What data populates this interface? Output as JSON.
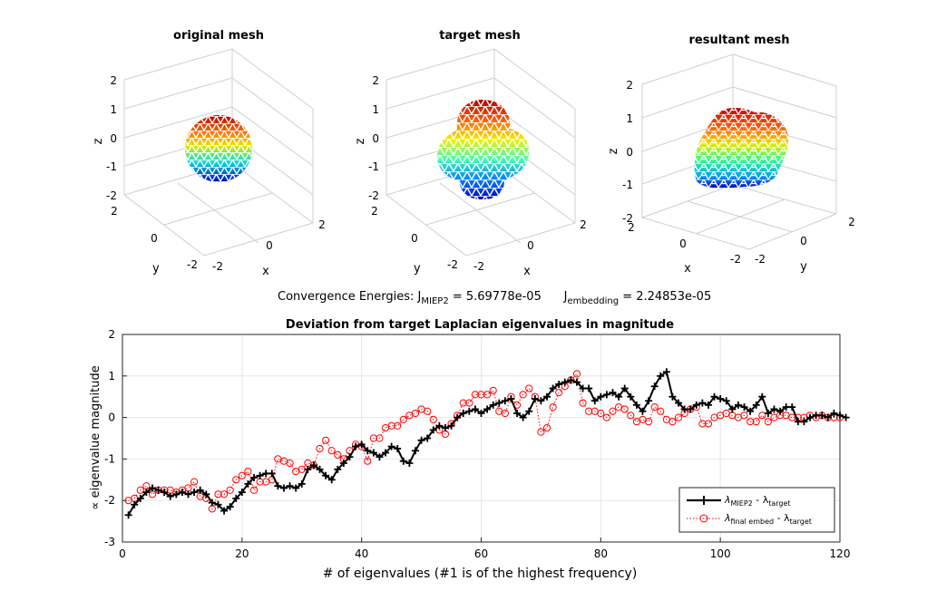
{
  "meshes": [
    {
      "title": "original mesh",
      "z_ticks": [
        "2",
        "1",
        "0",
        "-1",
        "-2"
      ],
      "y_ticks": [
        "2",
        "0",
        "-2"
      ],
      "x_ticks": [
        "-2",
        "0",
        "2"
      ],
      "xlabel": "x",
      "ylabel": "y",
      "zlabel": "z"
    },
    {
      "title": "target mesh",
      "z_ticks": [
        "2",
        "1",
        "0",
        "-1",
        "-2"
      ],
      "y_ticks": [
        "2",
        "0",
        "-2"
      ],
      "x_ticks": [
        "-2",
        "0",
        "2"
      ],
      "xlabel": "x",
      "ylabel": "y",
      "zlabel": "z"
    },
    {
      "title": "resultant mesh",
      "z_ticks": [
        "2",
        "1",
        "0",
        "-1",
        "-2"
      ],
      "y_ticks": [
        "0",
        "-2"
      ],
      "x_ticks": [
        "2",
        "-2"
      ],
      "x_ticks2": [
        "0",
        "2"
      ],
      "xlabel": "x",
      "ylabel": "y",
      "zlabel": "z"
    }
  ],
  "energies": {
    "prefix": "Convergence Energies: J",
    "sub1": "MIEP2",
    "mid1": " = 5.69778e-05",
    "gap": "      J",
    "sub2": "embedding",
    "mid2": " = 2.24853e-05"
  },
  "chart_data": {
    "type": "line",
    "title": "Deviation from target Laplacian eigenvalues in magnitude",
    "xlabel": "# of eigenvalues (#1 is of the highest frequency)",
    "ylabel": "∝ eigenvalue magnitude",
    "xlim": [
      0,
      120
    ],
    "ylim": [
      -3,
      2
    ],
    "x_ticks": [
      0,
      20,
      40,
      60,
      80,
      100,
      120
    ],
    "y_ticks": [
      -3,
      -2,
      -1,
      0,
      1,
      2
    ],
    "grid": true,
    "legend_position": "bottom-right",
    "legend": [
      {
        "main": "λ",
        "sub": "MIEP2",
        "rest": " - λ",
        "sub2": "target"
      },
      {
        "main": "λ",
        "sub": "final embed",
        "rest": " - λ",
        "sub2": "target"
      }
    ],
    "colors": {
      "series1": "#000000",
      "series2": "#ff0000",
      "grid": "#e6e6e6"
    },
    "series": [
      {
        "values": [
          -2.35,
          -2.1,
          -1.95,
          -1.8,
          -1.7,
          -1.75,
          -1.8,
          -1.9,
          -1.85,
          -1.8,
          -1.85,
          -1.8,
          -1.75,
          -1.85,
          -2.05,
          -2.1,
          -2.25,
          -2.15,
          -1.95,
          -1.8,
          -1.6,
          -1.45,
          -1.4,
          -1.35,
          -1.35,
          -1.65,
          -1.7,
          -1.65,
          -1.7,
          -1.6,
          -1.25,
          -1.15,
          -1.25,
          -1.4,
          -1.5,
          -1.25,
          -1.1,
          -0.95,
          -0.7,
          -0.65,
          -0.8,
          -0.85,
          -0.95,
          -0.85,
          -0.7,
          -0.75,
          -1.05,
          -1.1,
          -0.8,
          -0.55,
          -0.5,
          -0.3,
          -0.2,
          -0.25,
          -0.2,
          0.0,
          0.1,
          0.15,
          0.2,
          0.1,
          0.2,
          0.3,
          0.35,
          0.4,
          0.45,
          0.1,
          0.0,
          0.15,
          0.45,
          0.4,
          0.5,
          0.7,
          0.8,
          0.85,
          0.9,
          0.85,
          0.7,
          0.7,
          0.4,
          0.5,
          0.55,
          0.6,
          0.5,
          0.7,
          0.5,
          0.3,
          0.15,
          0.4,
          0.75,
          1.0,
          1.1,
          0.5,
          0.35,
          0.2,
          0.2,
          0.3,
          0.35,
          0.3,
          0.5,
          0.45,
          0.4,
          0.2,
          0.3,
          0.25,
          0.15,
          0.3,
          0.5,
          0.1,
          0.2,
          0.15,
          0.25,
          0.25,
          -0.1,
          -0.1,
          0.0,
          0.05,
          0.05,
          0.0,
          0.1,
          0.05,
          0.0
        ]
      },
      {
        "values": [
          -2.0,
          -1.95,
          -1.75,
          -1.65,
          -1.85,
          -1.75,
          -1.75,
          -1.75,
          -1.8,
          -1.75,
          -1.7,
          -1.55,
          -1.9,
          -1.95,
          -2.2,
          -1.85,
          -1.85,
          -1.75,
          -1.5,
          -1.4,
          -1.3,
          -1.75,
          -1.55,
          -1.55,
          -1.5,
          -1.0,
          -1.05,
          -1.1,
          -1.3,
          -1.25,
          -1.1,
          -1.15,
          -0.75,
          -0.55,
          -0.8,
          -0.9,
          -1.0,
          -0.8,
          -0.65,
          -0.7,
          -1.05,
          -0.5,
          -0.5,
          -0.25,
          -0.2,
          -0.2,
          -0.05,
          0.05,
          0.1,
          0.2,
          0.15,
          -0.05,
          -0.3,
          -0.4,
          -0.15,
          0.05,
          0.35,
          0.35,
          0.55,
          0.55,
          0.55,
          0.65,
          0.15,
          0.1,
          0.5,
          0.3,
          0.55,
          0.7,
          0.5,
          -0.35,
          -0.25,
          0.25,
          0.6,
          0.75,
          0.9,
          1.05,
          0.35,
          0.15,
          0.15,
          0.1,
          0.0,
          0.15,
          0.25,
          0.2,
          0.05,
          -0.1,
          -0.05,
          -0.1,
          0.25,
          0.15,
          -0.05,
          -0.1,
          0.0,
          0.1,
          0.2,
          0.25,
          -0.15,
          -0.15,
          0.0,
          0.05,
          0.1,
          0.05,
          0.0,
          0.05,
          -0.1,
          -0.1,
          0.05,
          -0.1,
          0.0,
          0.05,
          0.05,
          0.0,
          0.0,
          0.0,
          0.05,
          0.0,
          0.05,
          0.0,
          0.0,
          0.0
        ]
      }
    ]
  }
}
